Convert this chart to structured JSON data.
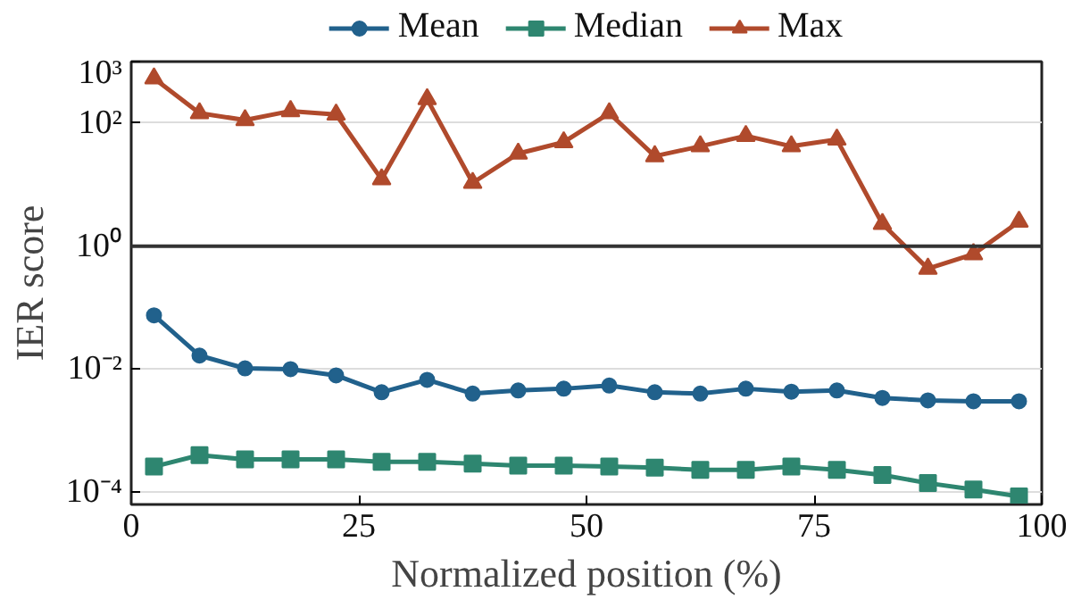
{
  "chart_data": {
    "type": "line",
    "xlabel": "Normalized position (%)",
    "ylabel": "IER score",
    "x": [
      2.5,
      7.5,
      12.5,
      17.5,
      22.5,
      27.5,
      32.5,
      37.5,
      42.5,
      47.5,
      52.5,
      57.5,
      62.5,
      67.5,
      72.5,
      77.5,
      82.5,
      87.5,
      92.5,
      97.5
    ],
    "series": [
      {
        "name": "Mean",
        "color": "#21618c",
        "marker": "circle",
        "values": [
          0.075,
          0.0166,
          0.0103,
          0.01,
          0.0079,
          0.0042,
          0.0067,
          0.004,
          0.0045,
          0.0048,
          0.0054,
          0.0042,
          0.004,
          0.0048,
          0.0043,
          0.0045,
          0.0034,
          0.0031,
          0.003,
          0.003
        ]
      },
      {
        "name": "Median",
        "color": "#2e8670",
        "marker": "square",
        "values": [
          0.00026,
          0.0004,
          0.00034,
          0.00034,
          0.00034,
          0.00031,
          0.00031,
          0.00029,
          0.00027,
          0.00027,
          0.00026,
          0.00025,
          0.00023,
          0.00023,
          0.00026,
          0.00023,
          0.00019,
          0.00014,
          0.00011,
          8.5e-05
        ]
      },
      {
        "name": "Max",
        "color": "#b04a2c",
        "marker": "triangle",
        "values": [
          535,
          145,
          112,
          157,
          138,
          12.2,
          245,
          10.7,
          32,
          49,
          145,
          29,
          42,
          62,
          42,
          54,
          2.3,
          0.43,
          0.74,
          2.5
        ]
      }
    ],
    "xlim": [
      0,
      100
    ],
    "xticks": [
      0,
      25,
      50,
      75,
      100
    ],
    "ylim": [
      6.3e-05,
      1000
    ],
    "yticks": [
      {
        "value": 0.0001,
        "label": "10⁻⁴"
      },
      {
        "value": 0.01,
        "label": "10⁻²"
      },
      {
        "value": 1,
        "label": "10⁰"
      },
      {
        "value": 100,
        "label": "10²"
      },
      {
        "value": 1000,
        "label": "10³"
      }
    ],
    "log": "y",
    "grid": "y",
    "legend": "top",
    "line_style": "solid",
    "ref_lines": [
      {
        "axis": "y",
        "value": 1,
        "label": null,
        "color": "#333333"
      }
    ]
  }
}
